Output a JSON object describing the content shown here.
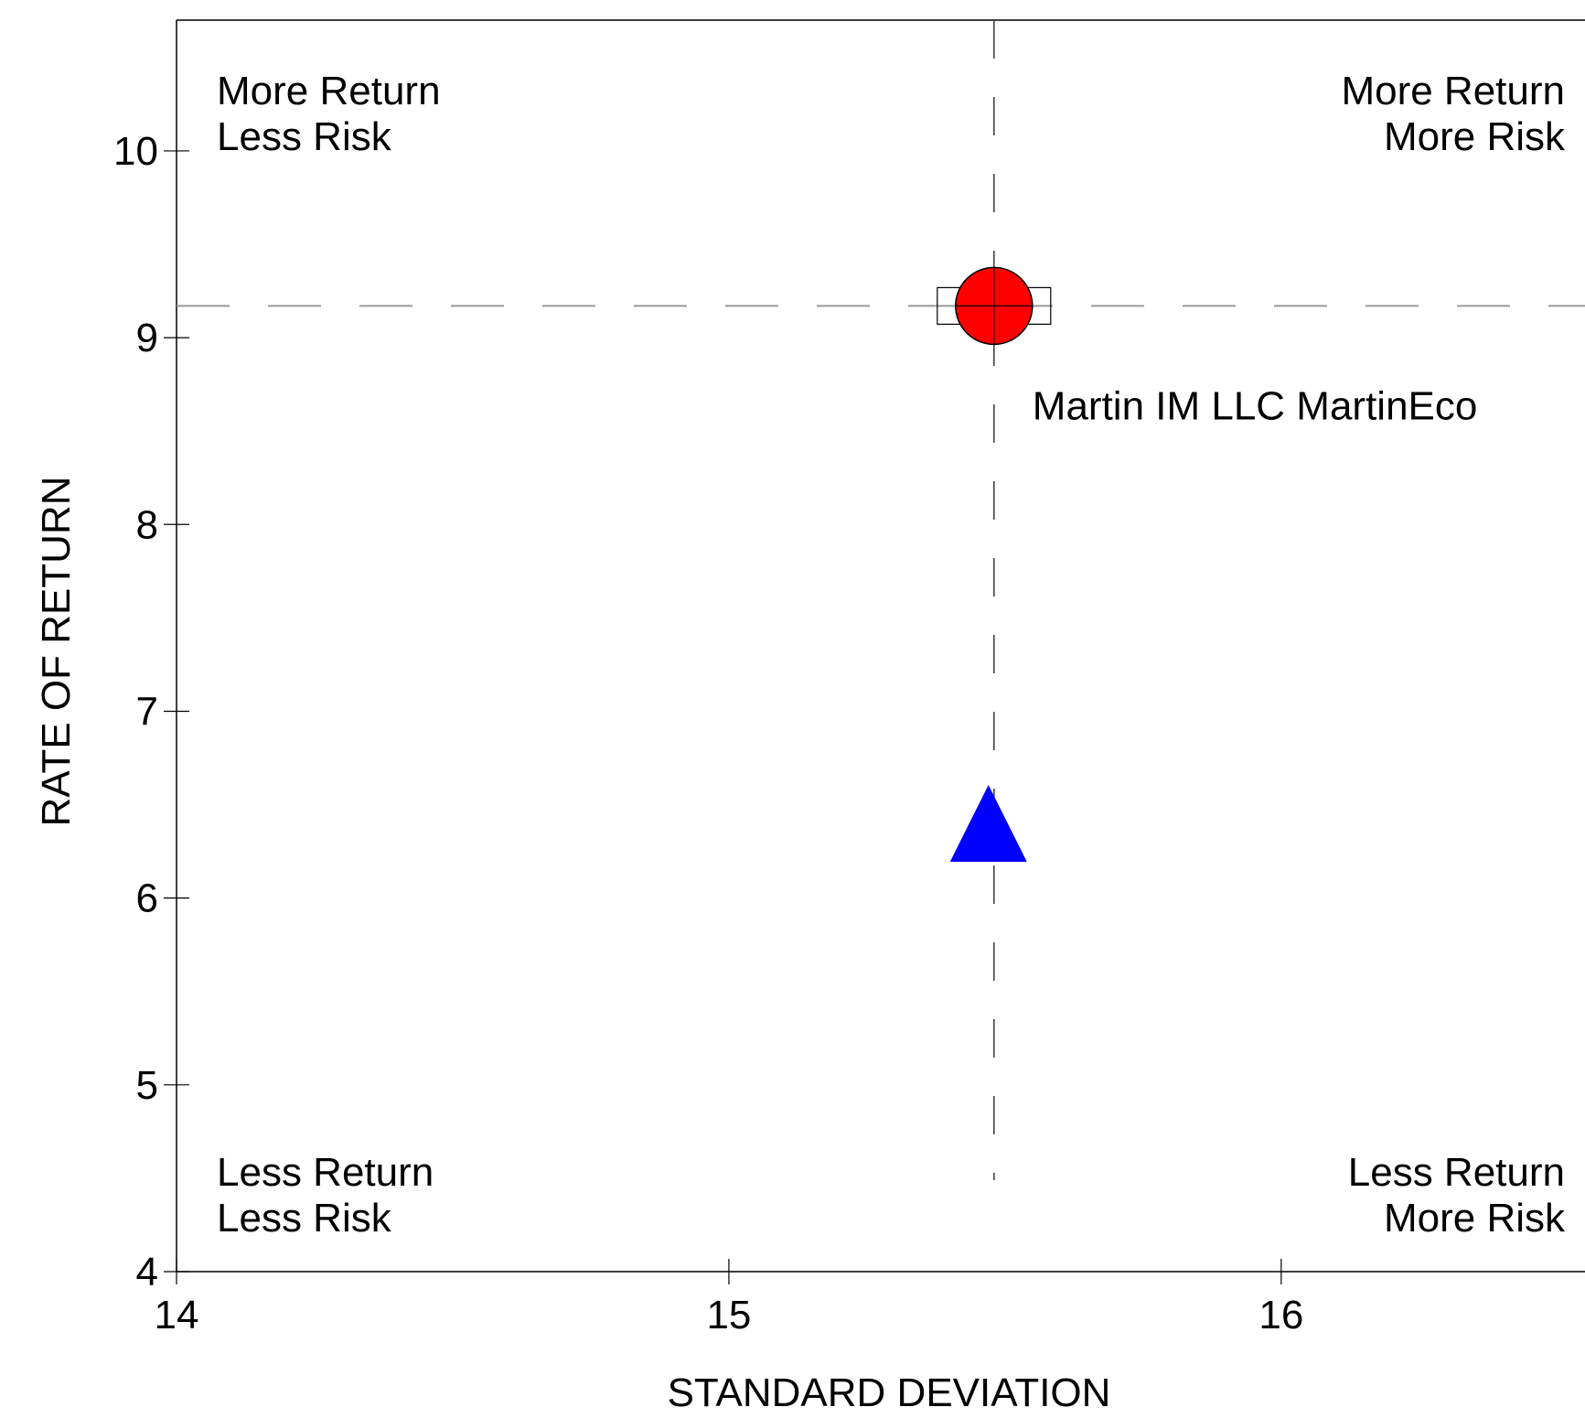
{
  "chart_data": {
    "type": "scatter",
    "title": "",
    "xlabel": "STANDARD DEVIATION",
    "ylabel": "RATE OF RETURN",
    "xlim": [
      14,
      16.55
    ],
    "ylim": [
      4,
      10.7
    ],
    "xticks": [
      14,
      15,
      16
    ],
    "yticks": [
      4,
      5,
      6,
      7,
      8,
      9,
      10
    ],
    "grid": false,
    "reference_lines": {
      "x": 15.48,
      "y": 9.17
    },
    "quadrant_labels": {
      "top_left": [
        "More Return",
        "Less Risk"
      ],
      "top_right": [
        "More Return",
        "More Risk"
      ],
      "bottom_left": [
        "Less Return",
        "Less Risk"
      ],
      "bottom_right": [
        "Less Return",
        "More Risk"
      ]
    },
    "points": [
      {
        "label": "Martin IM LLC MartinEco",
        "x": 15.48,
        "y": 9.17,
        "marker": "circle",
        "color": "#ff0000",
        "highlight_box": true
      },
      {
        "label": "",
        "x": 15.47,
        "y": 6.4,
        "marker": "triangle",
        "color": "#0000ff"
      }
    ]
  }
}
